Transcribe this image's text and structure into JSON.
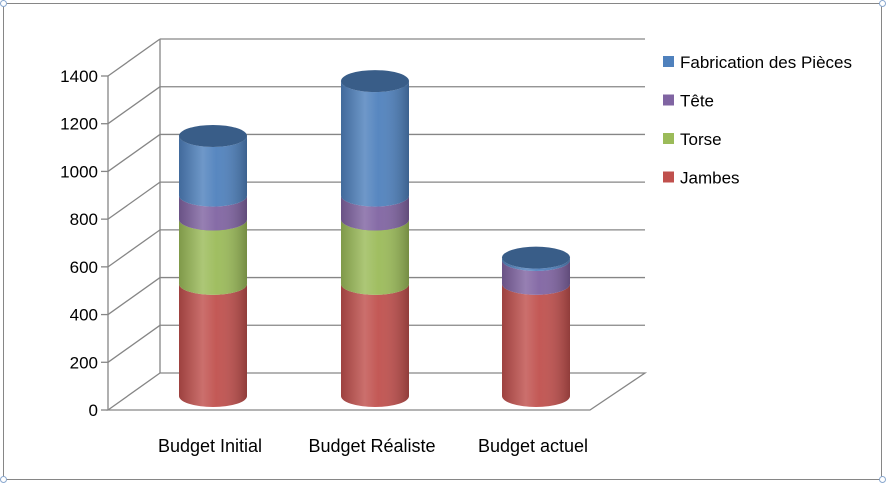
{
  "chart_data": {
    "type": "bar",
    "stacked": true,
    "style": "3d-cylinder",
    "categories": [
      "Budget Initial",
      "Budget Réaliste",
      "Budget actuel"
    ],
    "series": [
      {
        "name": "Jambes",
        "color": "#c0504d",
        "values": [
          470,
          470,
          470
        ]
      },
      {
        "name": "Torse",
        "color": "#9bbb59",
        "values": [
          270,
          270,
          0
        ]
      },
      {
        "name": "Tête",
        "color": "#8064a2",
        "values": [
          100,
          100,
          100
        ]
      },
      {
        "name": "Fabrication des Pièces",
        "color": "#4f81bd",
        "values": [
          250,
          480,
          10
        ]
      }
    ],
    "ylim": [
      0,
      1400
    ],
    "yticks": [
      "0",
      "200",
      "400",
      "600",
      "800",
      "1000",
      "1200",
      "1400"
    ],
    "grid": true,
    "legend": "right"
  }
}
